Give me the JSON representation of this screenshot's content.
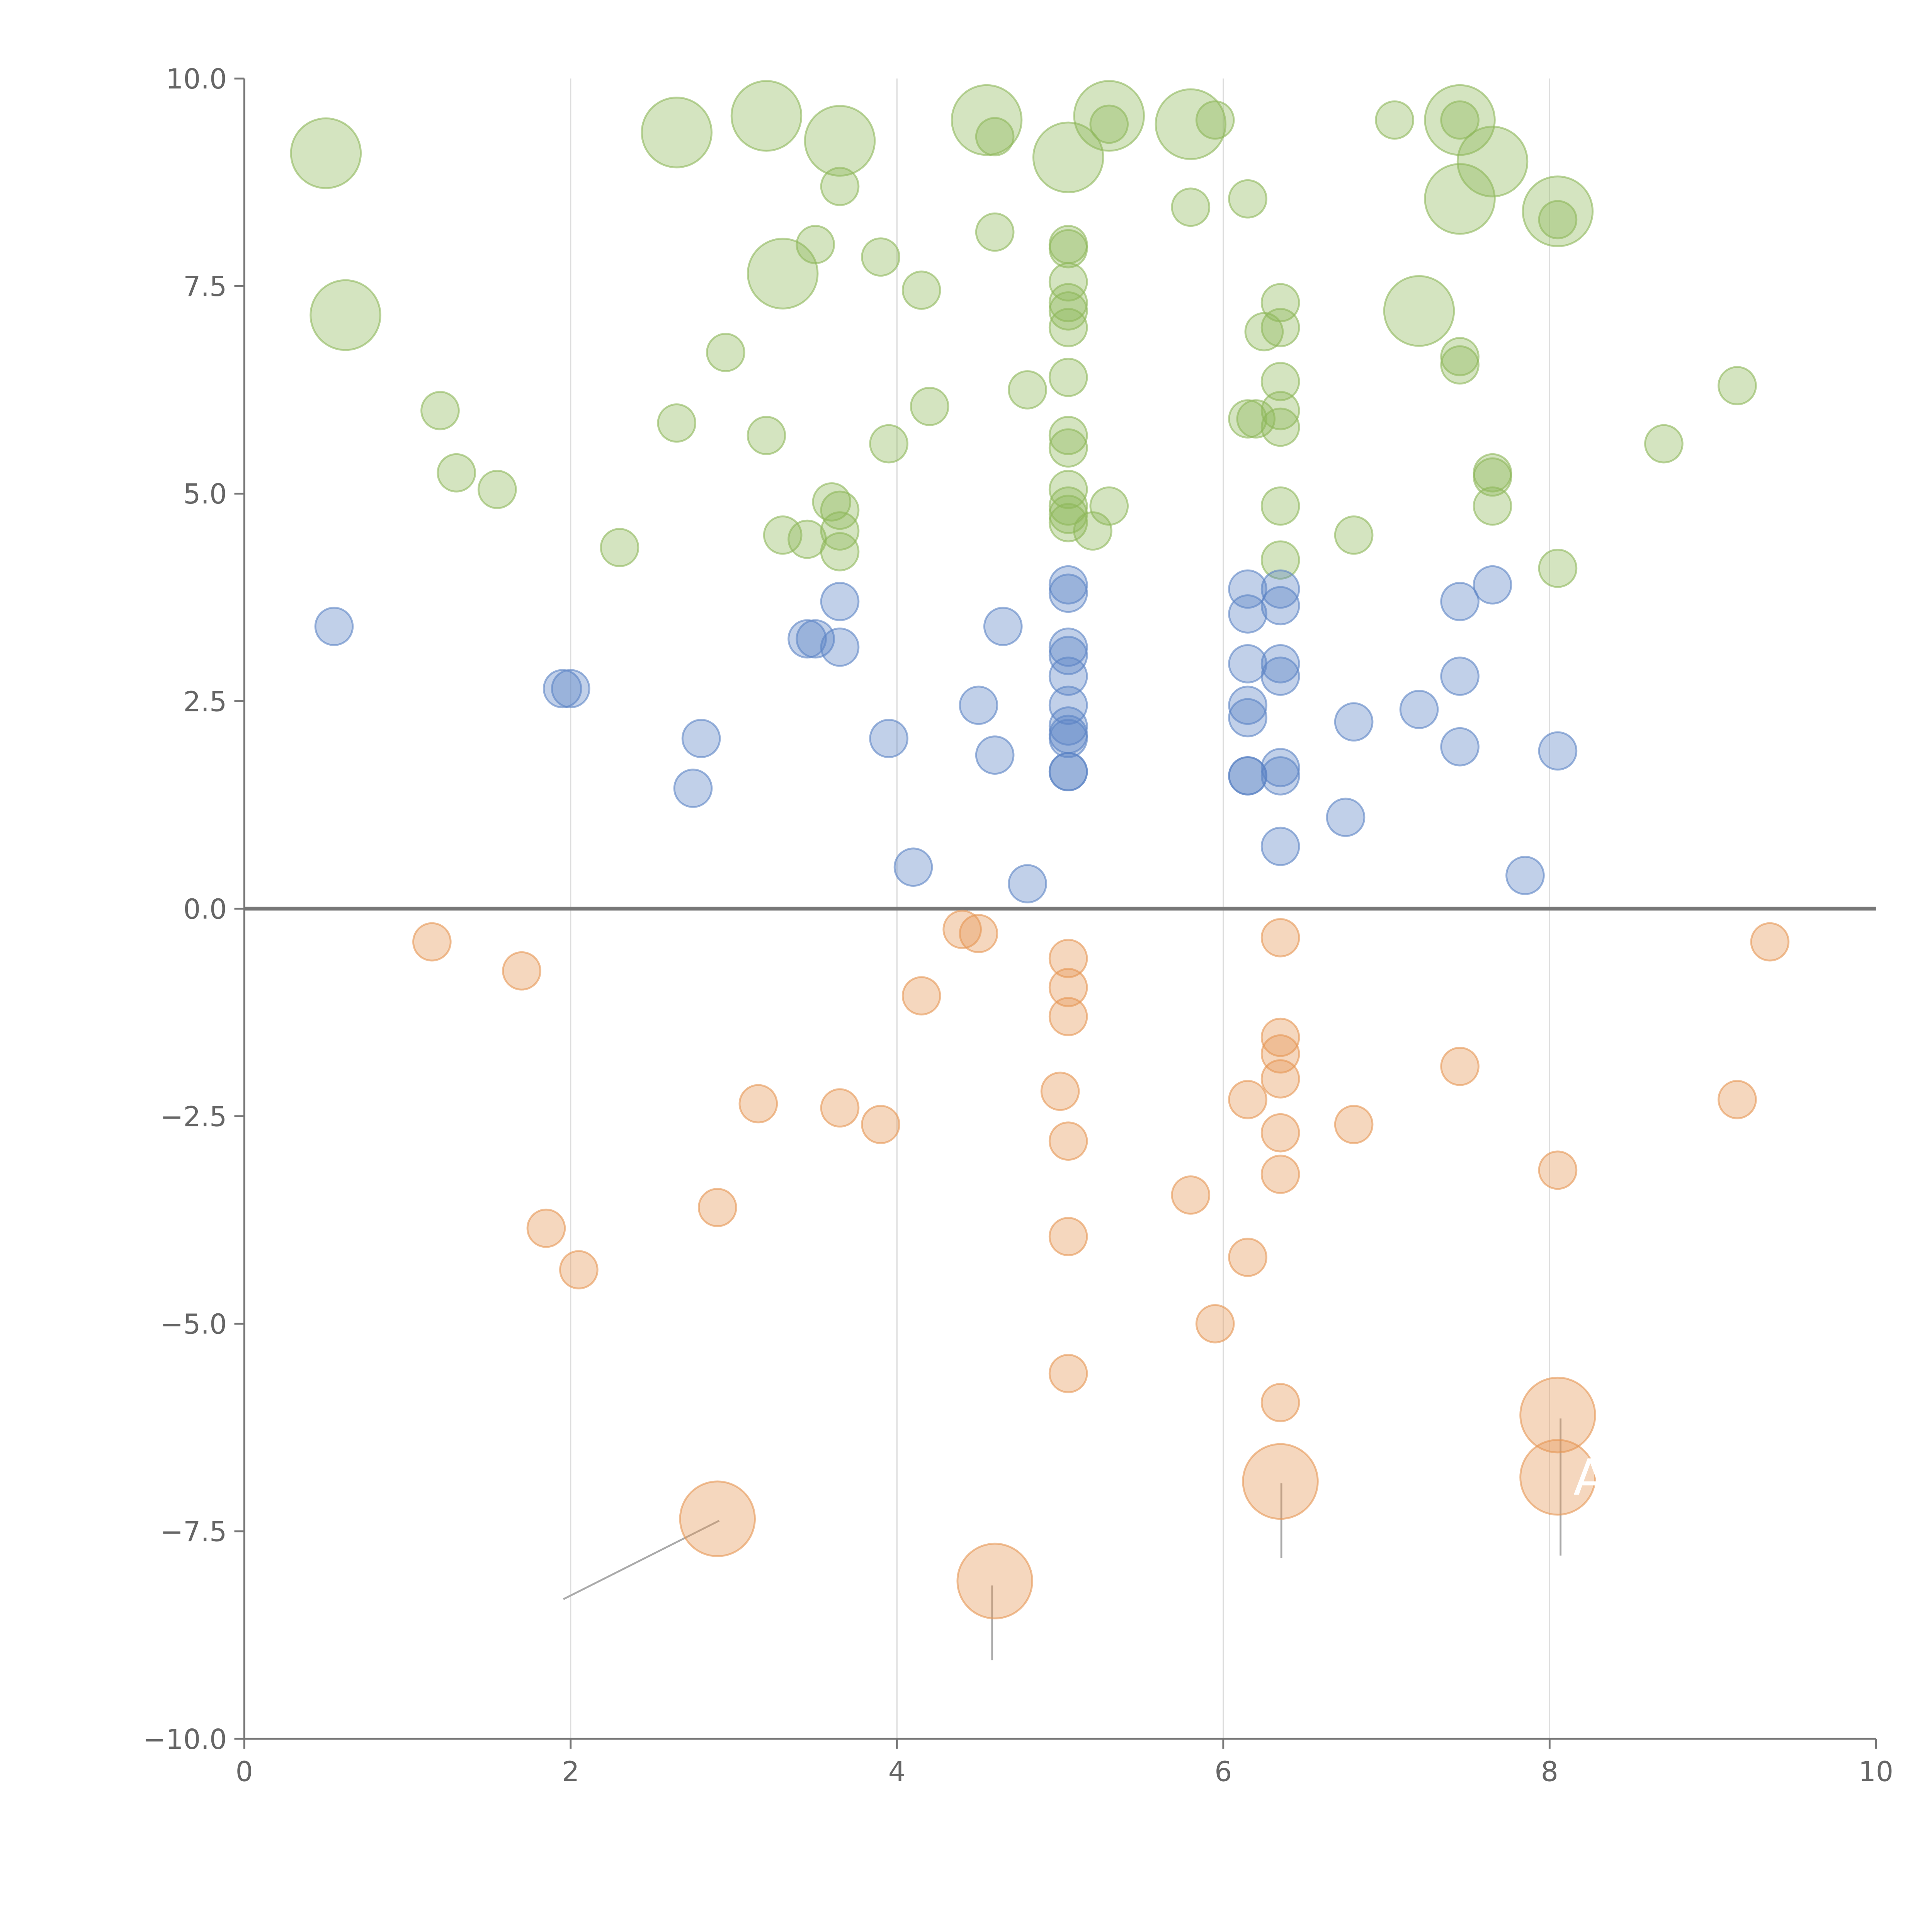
{
  "chart_data": {
    "type": "scatter",
    "title": "",
    "xlabel": "",
    "ylabel": "",
    "xlim": [
      0,
      10
    ],
    "ylim": [
      -10,
      10
    ],
    "x_ticks": [
      "0",
      "2",
      "4",
      "6",
      "8",
      "10"
    ],
    "y_ticks": [
      "−10.0",
      "−7.5",
      "−5.0",
      "−2.5",
      "0.0",
      "2.5",
      "5.0",
      "7.5",
      "10.0"
    ],
    "x_tick_values": [
      0,
      2,
      4,
      6,
      8,
      10
    ],
    "y_tick_values": [
      -10,
      -7.5,
      -5,
      -2.5,
      0,
      2.5,
      5,
      7.5,
      10
    ],
    "vertical_gridlines_at": [
      2,
      4,
      6,
      8
    ],
    "zero_line": 0,
    "colors": {
      "green": "#8db85a",
      "blue": "#5b83c4",
      "orange": "#e69653"
    },
    "series": [
      {
        "name": "green",
        "color": "#8db85a",
        "points": [
          [
            0.5,
            9.1,
            3
          ],
          [
            0.62,
            7.15,
            3
          ],
          [
            2.65,
            9.35,
            3
          ],
          [
            3.2,
            9.55,
            3
          ],
          [
            3.3,
            7.65,
            3
          ],
          [
            3.65,
            9.25,
            3
          ],
          [
            4.55,
            9.5,
            3
          ],
          [
            5.05,
            9.05,
            3
          ],
          [
            5.3,
            9.55,
            3
          ],
          [
            5.8,
            9.45,
            3
          ],
          [
            7.2,
            7.2,
            3
          ],
          [
            7.45,
            9.5,
            3
          ],
          [
            7.45,
            8.55,
            3
          ],
          [
            7.65,
            9.0,
            3
          ],
          [
            8.05,
            8.4,
            3
          ],
          [
            1.2,
            6.0,
            1
          ],
          [
            1.3,
            5.25,
            1
          ],
          [
            1.55,
            5.05,
            1
          ],
          [
            2.3,
            4.35,
            1
          ],
          [
            2.65,
            5.85,
            1
          ],
          [
            2.95,
            6.7,
            1
          ],
          [
            3.2,
            5.7,
            1
          ],
          [
            3.3,
            4.5,
            1
          ],
          [
            3.45,
            4.45,
            1
          ],
          [
            3.5,
            8.0,
            1
          ],
          [
            3.6,
            4.9,
            1
          ],
          [
            3.65,
            4.8,
            1
          ],
          [
            3.65,
            4.55,
            1
          ],
          [
            3.65,
            4.3,
            1
          ],
          [
            3.65,
            8.7,
            1
          ],
          [
            3.9,
            7.85,
            1
          ],
          [
            3.95,
            5.6,
            1
          ],
          [
            4.15,
            7.45,
            1
          ],
          [
            4.2,
            6.05,
            1
          ],
          [
            4.6,
            9.3,
            1
          ],
          [
            4.6,
            8.15,
            1
          ],
          [
            4.8,
            6.25,
            1
          ],
          [
            5.05,
            8.0,
            1
          ],
          [
            5.05,
            7.95,
            1
          ],
          [
            5.05,
            7.55,
            1
          ],
          [
            5.05,
            7.3,
            1
          ],
          [
            5.05,
            7.2,
            1
          ],
          [
            5.05,
            7.0,
            1
          ],
          [
            5.05,
            6.4,
            1
          ],
          [
            5.05,
            5.7,
            1
          ],
          [
            5.05,
            5.55,
            1
          ],
          [
            5.05,
            5.05,
            1
          ],
          [
            5.05,
            4.85,
            1
          ],
          [
            5.05,
            4.75,
            1
          ],
          [
            5.05,
            4.65,
            1
          ],
          [
            5.2,
            4.55,
            1
          ],
          [
            5.3,
            4.85,
            1
          ],
          [
            5.3,
            9.45,
            1
          ],
          [
            5.8,
            8.45,
            1
          ],
          [
            5.95,
            9.5,
            1
          ],
          [
            6.15,
            8.55,
            1
          ],
          [
            6.15,
            5.9,
            1
          ],
          [
            6.2,
            5.9,
            1
          ],
          [
            6.25,
            6.95,
            1
          ],
          [
            6.35,
            7.3,
            1
          ],
          [
            6.35,
            7.0,
            1
          ],
          [
            6.35,
            6.35,
            1
          ],
          [
            6.35,
            6.0,
            1
          ],
          [
            6.35,
            5.8,
            1
          ],
          [
            6.35,
            4.85,
            1
          ],
          [
            6.35,
            4.2,
            1
          ],
          [
            6.8,
            4.5,
            1
          ],
          [
            7.05,
            9.5,
            1
          ],
          [
            7.45,
            9.5,
            1
          ],
          [
            7.45,
            6.65,
            1
          ],
          [
            7.45,
            6.55,
            1
          ],
          [
            7.65,
            5.25,
            1
          ],
          [
            7.65,
            5.2,
            1
          ],
          [
            7.65,
            4.85,
            1
          ],
          [
            8.05,
            4.1,
            1
          ],
          [
            8.05,
            8.3,
            1
          ],
          [
            8.7,
            5.6,
            1
          ],
          [
            9.15,
            6.3,
            1
          ]
        ]
      },
      {
        "name": "blue",
        "color": "#5b83c4",
        "points": [
          [
            0.55,
            3.4,
            1
          ],
          [
            1.95,
            2.65,
            1
          ],
          [
            2.0,
            2.65,
            1
          ],
          [
            2.75,
            1.45,
            1
          ],
          [
            2.8,
            2.05,
            1
          ],
          [
            3.45,
            3.25,
            1
          ],
          [
            3.5,
            3.25,
            1
          ],
          [
            3.65,
            3.7,
            1
          ],
          [
            3.65,
            3.15,
            1
          ],
          [
            3.95,
            2.05,
            1
          ],
          [
            4.1,
            0.5,
            1
          ],
          [
            4.5,
            2.45,
            1
          ],
          [
            4.6,
            1.85,
            1
          ],
          [
            4.65,
            3.4,
            1
          ],
          [
            4.8,
            0.3,
            1
          ],
          [
            5.05,
            3.9,
            1
          ],
          [
            5.05,
            3.8,
            1
          ],
          [
            5.05,
            3.15,
            1
          ],
          [
            5.05,
            3.05,
            1
          ],
          [
            5.05,
            2.8,
            1
          ],
          [
            5.05,
            2.45,
            1
          ],
          [
            5.05,
            2.2,
            1
          ],
          [
            5.05,
            2.1,
            1
          ],
          [
            5.05,
            2.05,
            1
          ],
          [
            5.05,
            1.65,
            1
          ],
          [
            5.05,
            1.65,
            1
          ],
          [
            6.15,
            3.85,
            1
          ],
          [
            6.15,
            3.55,
            1
          ],
          [
            6.15,
            2.95,
            1
          ],
          [
            6.15,
            2.45,
            1
          ],
          [
            6.15,
            2.3,
            1
          ],
          [
            6.15,
            1.6,
            1
          ],
          [
            6.15,
            1.6,
            1
          ],
          [
            6.35,
            3.85,
            1
          ],
          [
            6.35,
            3.65,
            1
          ],
          [
            6.35,
            2.95,
            1
          ],
          [
            6.35,
            2.8,
            1
          ],
          [
            6.35,
            1.7,
            1
          ],
          [
            6.35,
            1.6,
            1
          ],
          [
            6.35,
            0.75,
            1
          ],
          [
            6.75,
            1.1,
            1
          ],
          [
            6.8,
            2.25,
            1
          ],
          [
            7.2,
            2.4,
            1
          ],
          [
            7.45,
            3.7,
            1
          ],
          [
            7.45,
            2.8,
            1
          ],
          [
            7.45,
            1.95,
            1
          ],
          [
            7.65,
            3.9,
            1
          ],
          [
            7.85,
            0.4,
            1
          ],
          [
            8.05,
            1.9,
            1
          ]
        ]
      },
      {
        "name": "orange",
        "color": "#e69653",
        "points": [
          [
            1.15,
            -0.4,
            1
          ],
          [
            1.7,
            -0.75,
            1
          ],
          [
            1.85,
            -3.85,
            1
          ],
          [
            2.05,
            -4.35,
            1
          ],
          [
            2.9,
            -3.6,
            1
          ],
          [
            3.15,
            -2.35,
            1
          ],
          [
            3.65,
            -2.4,
            1
          ],
          [
            3.9,
            -2.6,
            1
          ],
          [
            4.15,
            -1.05,
            1
          ],
          [
            4.4,
            -0.25,
            1
          ],
          [
            4.5,
            -0.3,
            1
          ],
          [
            5.0,
            -2.2,
            1
          ],
          [
            5.05,
            -0.6,
            1
          ],
          [
            5.05,
            -0.95,
            1
          ],
          [
            5.05,
            -1.3,
            1
          ],
          [
            5.05,
            -2.8,
            1
          ],
          [
            5.05,
            -3.95,
            1
          ],
          [
            5.05,
            -5.6,
            1
          ],
          [
            5.8,
            -3.45,
            1
          ],
          [
            5.95,
            -5.0,
            1
          ],
          [
            6.15,
            -2.3,
            1
          ],
          [
            6.15,
            -4.2,
            1
          ],
          [
            6.35,
            -0.35,
            1
          ],
          [
            6.35,
            -1.55,
            1
          ],
          [
            6.35,
            -1.75,
            1
          ],
          [
            6.35,
            -2.05,
            1
          ],
          [
            6.35,
            -2.7,
            1
          ],
          [
            6.35,
            -3.2,
            1
          ],
          [
            6.35,
            -5.95,
            1
          ],
          [
            6.8,
            -2.6,
            1
          ],
          [
            7.45,
            -1.9,
            1
          ],
          [
            8.05,
            -3.15,
            1
          ],
          [
            9.15,
            -2.3,
            1
          ],
          [
            9.35,
            -0.4,
            1
          ],
          [
            2.9,
            -7.35,
            2
          ],
          [
            4.6,
            -8.1,
            2
          ],
          [
            6.35,
            -6.9,
            2
          ],
          [
            8.05,
            -6.1,
            2
          ],
          [
            8.05,
            -6.85,
            2
          ]
        ]
      }
    ],
    "annotations": [
      {
        "text": "A",
        "x": 8.25,
        "y": -6.85
      }
    ]
  }
}
